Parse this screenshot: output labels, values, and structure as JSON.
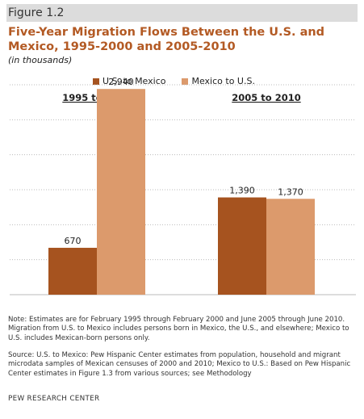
{
  "figure_label": "Figure 1.2",
  "title": "Five-Year Migration Flows Between the U.S. and Mexico, 1995-2000 and 2005-2010",
  "subtitle": "(in thousands)",
  "note": "Note: Estimates are for February 1995 through February 2000 and June 2005 through June 2010. Migration from U.S. to Mexico includes persons born in Mexico, the U.S., and elsewhere; Mexico to U.S. includes Mexican-born persons only.",
  "source": "Source: U.S. to Mexico: Pew Hispanic Center estimates from population, household and migrant microdata samples of Mexican censuses of 2000 and 2010; Mexico to U.S.: Based on Pew Hispanic Center estimates in Figure 1.3 from various sources; see Methodology",
  "org": "PEW RESEARCH CENTER",
  "colors": {
    "title": "#b35a24",
    "series1": "#a6531f",
    "series2": "#dc9a6c",
    "grid": "#bbbbbb"
  },
  "chart_data": {
    "type": "bar",
    "categories": [
      "1995 to 2000",
      "2005 to 2010"
    ],
    "series": [
      {
        "name": "U.S. to Mexico",
        "values": [
          670,
          1390
        ],
        "labels": [
          "670",
          "1,390"
        ]
      },
      {
        "name": "Mexico to U.S.",
        "values": [
          2940,
          1370
        ],
        "labels": [
          "2,940",
          "1,370"
        ]
      }
    ],
    "ylim": [
      0,
      3000
    ],
    "grid": true,
    "legend_position": "top"
  }
}
